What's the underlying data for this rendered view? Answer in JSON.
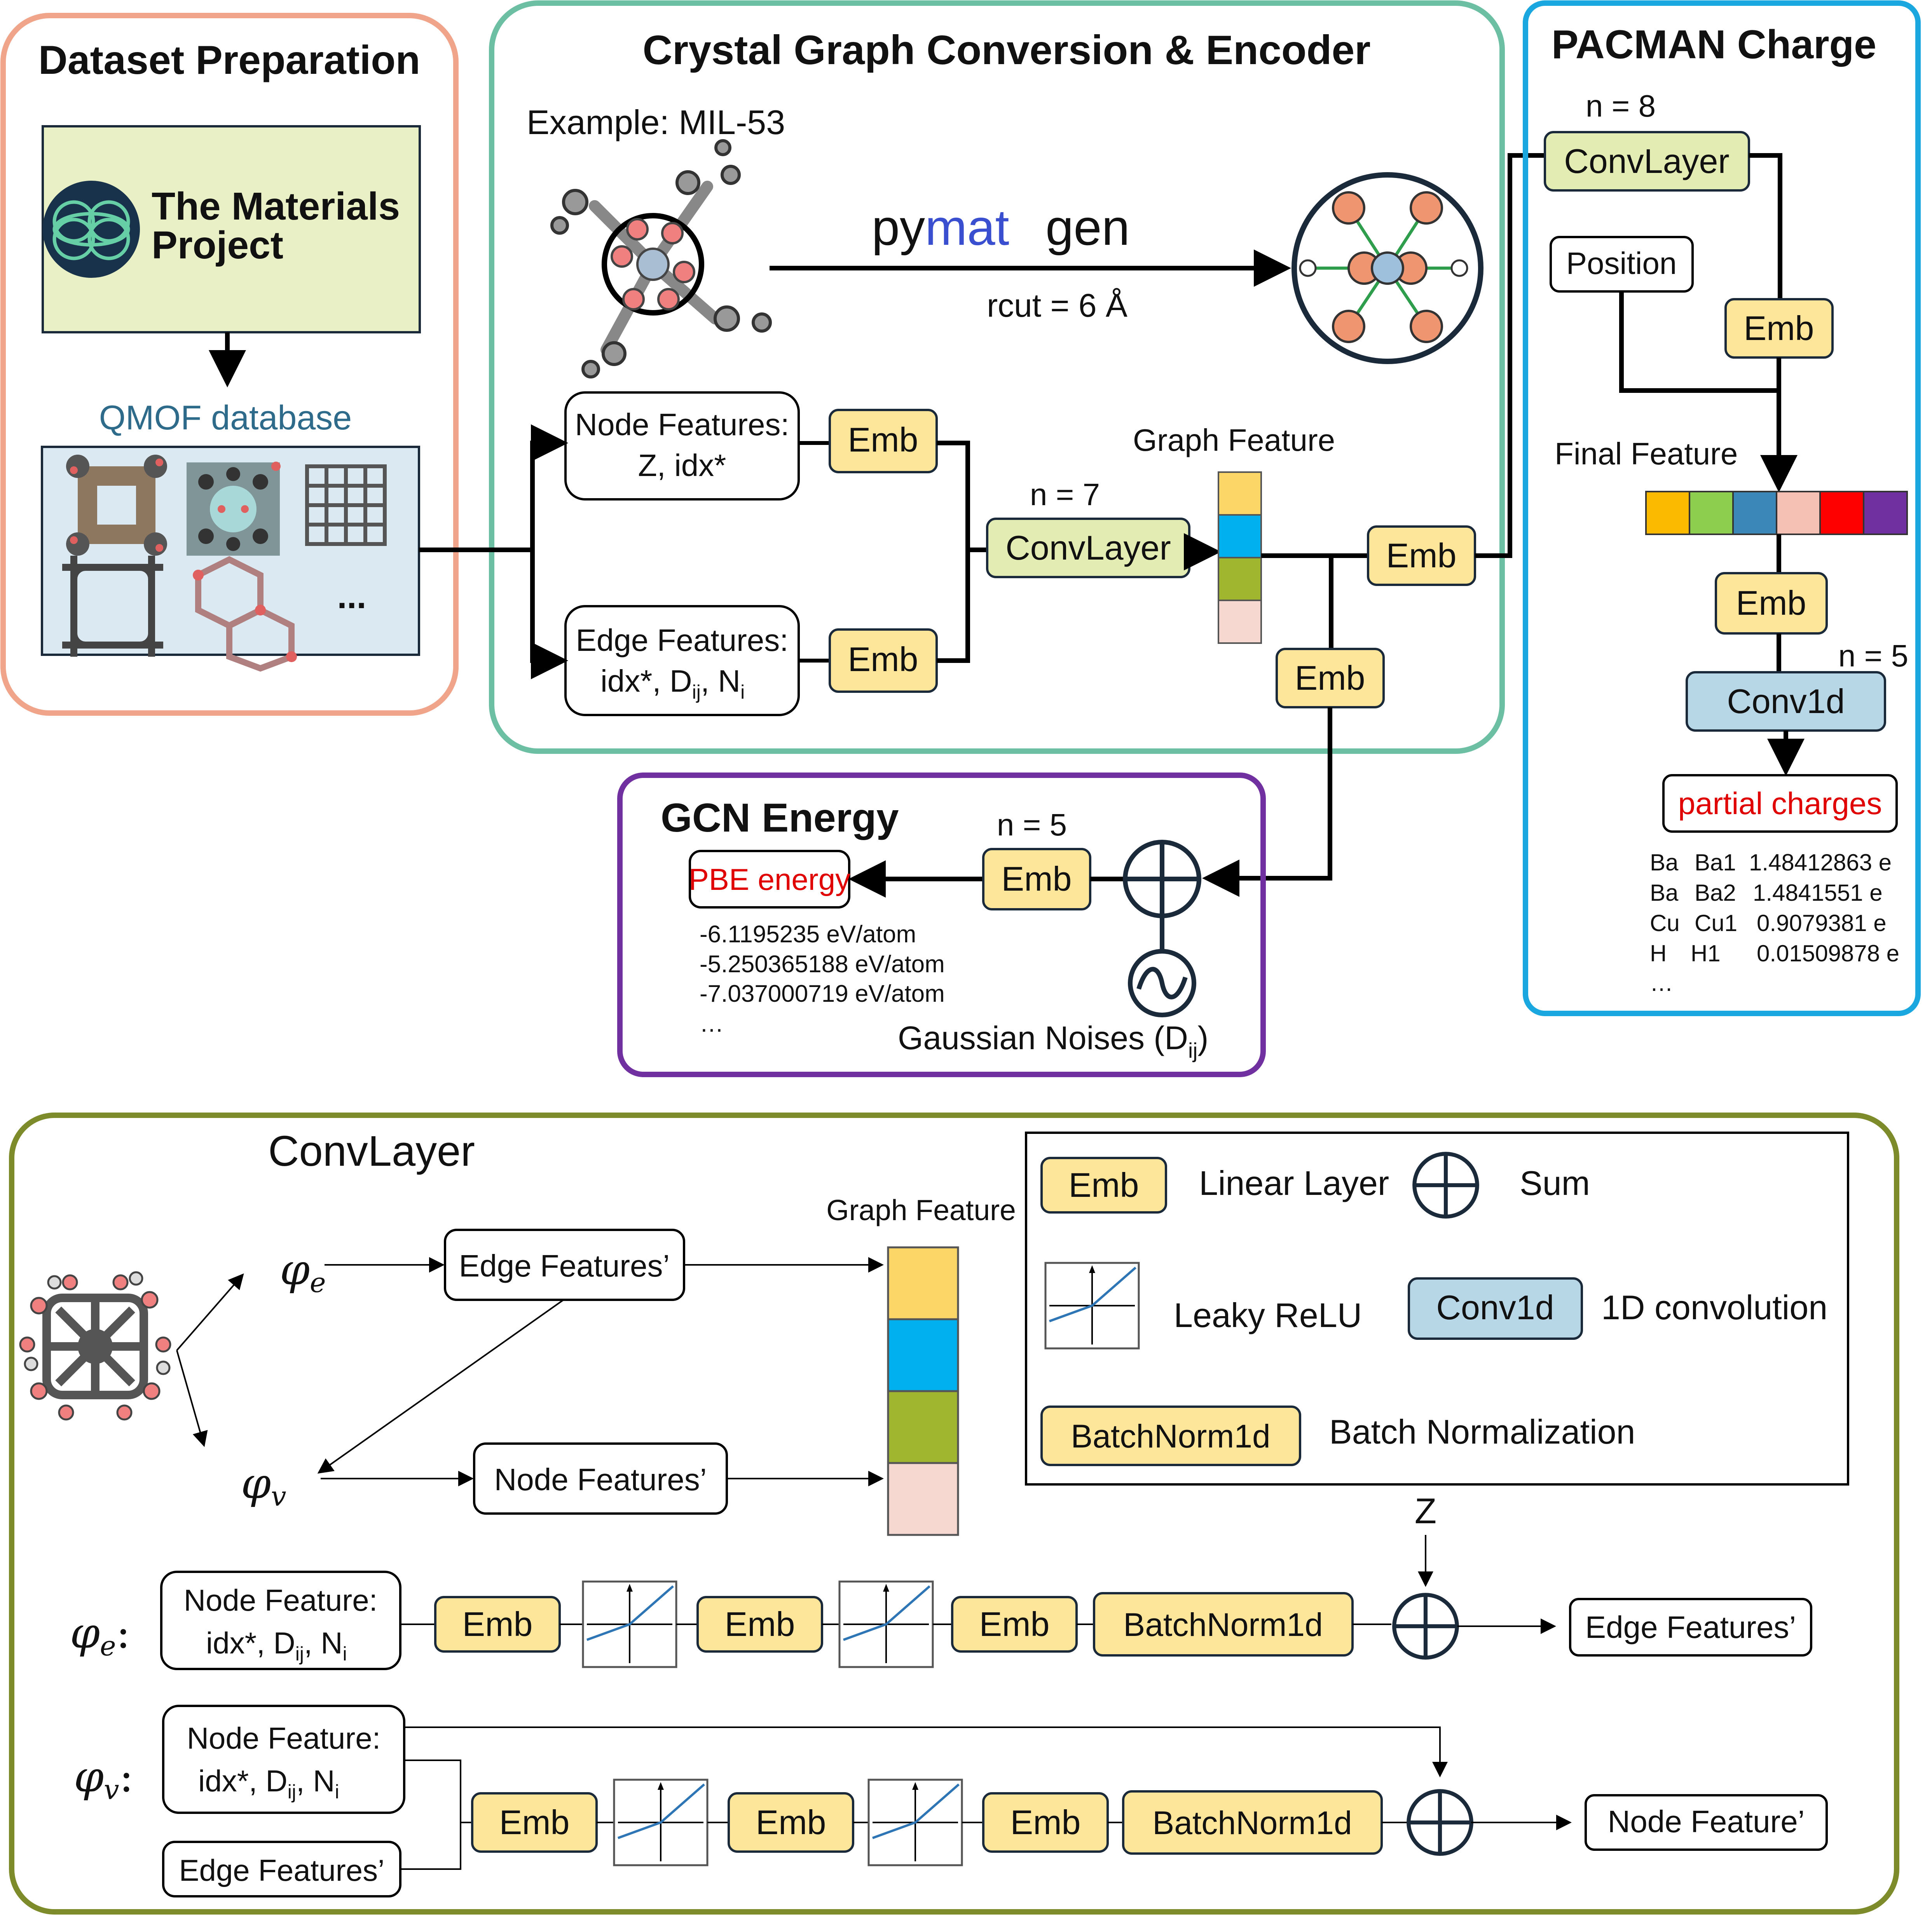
{
  "panels": {
    "dataset": {
      "title": "Dataset Preparation",
      "mp_line1": "The Materials",
      "mp_line2": "Project",
      "qmof": "QMOF database",
      "ellipsis": "..."
    },
    "encoder": {
      "title": "Crystal Graph Conversion & Encoder",
      "example": "Example: MIL-53",
      "pymatgen_a": "py",
      "pymatgen_b": "mat",
      "pymatgen_c": "gen",
      "rcut": "rcut = 6 Å",
      "node_features_l1": "Node Features:",
      "node_features_l2": "Z, idx*",
      "edge_features_l1": "Edge Features:",
      "edge_features_l2a": "idx*, D",
      "edge_features_sub1": "ij",
      "edge_features_l2b": ", N",
      "edge_features_sub2": "i",
      "emb": "Emb",
      "n7": "n = 7",
      "convlayer": "ConvLayer",
      "graph_feature": "Graph Feature"
    },
    "gcn": {
      "title": "GCN Energy",
      "n5": "n = 5",
      "emb": "Emb",
      "pbe": "PBE energy",
      "energies": [
        "-6.1195235 eV/atom",
        "-5.250365188 eV/atom",
        "-7.037000719 eV/atom",
        "…"
      ],
      "noise_a": "Gaussian Noises (D",
      "noise_sub": "ij",
      "noise_b": ")"
    },
    "pacman": {
      "title": "PACMAN Charge",
      "n8": "n = 8",
      "convlayer": "ConvLayer",
      "position": "Position",
      "emb": "Emb",
      "final_feature": "Final Feature",
      "n5": "n = 5",
      "conv1d": "Conv1d",
      "partial": "partial charges",
      "charges": [
        {
          "el": "Ba",
          "site": "Ba1",
          "val": "1.48412863 e"
        },
        {
          "el": "Ba",
          "site": "Ba2",
          "val": "1.4841551 e"
        },
        {
          "el": "Cu",
          "site": "Cu1",
          "val": "0.9079381 e"
        },
        {
          "el": "H",
          "site": "H1",
          "val": "0.01509878 e"
        }
      ],
      "ellipsis": "…"
    },
    "convlayer": {
      "title": "ConvLayer",
      "phi_e": "φ",
      "phi_e_sub": "e",
      "phi_v": "φ",
      "phi_v_sub": "v",
      "edge_features_p": "Edge Features’",
      "node_features_p": "Node Features’",
      "graph_feature": "Graph Feature",
      "legend": {
        "emb": "Emb",
        "linear": "Linear Layer",
        "sum": "Sum",
        "leaky": "Leaky ReLU",
        "conv1d": "Conv1d",
        "conv1d_desc": "1D convolution",
        "bn": "BatchNorm1d",
        "bn_desc": "Batch Normalization"
      },
      "z": "Z",
      "row_e_label": "φ",
      "row_e_sub": "e",
      "row_v_label": "φ",
      "row_v_sub": "v",
      "colon": ":",
      "node_feature_l1": "Node Feature:",
      "node_feature_l2a": "idx*, D",
      "node_feature_sub1": "ij",
      "node_feature_l2b": ", N",
      "node_feature_sub2": "i",
      "emb": "Emb",
      "bn": "BatchNorm1d",
      "out_edge": "Edge Features’",
      "out_node": "Node Feature’",
      "edge_features_in": "Edge Features’"
    }
  },
  "colors": {
    "dataset_border": "#f0a48a",
    "encoder_border": "#6cbfa2",
    "pacman_border": "#1aa7e0",
    "gcn_border": "#7030a0",
    "convlayer_border": "#7e8b2a",
    "emb_fill": "#fde69a",
    "convlayer_fill": "#e3ecb3",
    "conv1d_fill": "#b7d6e6",
    "red_text": "#e00000",
    "qmof_text": "#2e6a8a",
    "graph_colors": [
      "#fcd666",
      "#00b0ef",
      "#a0b62e",
      "#f6d8d1"
    ],
    "final_colors": [
      "#fbb900",
      "#8dce4e",
      "#3b87b8",
      "#f5c1b4",
      "#ff0000",
      "#7030a0"
    ]
  }
}
